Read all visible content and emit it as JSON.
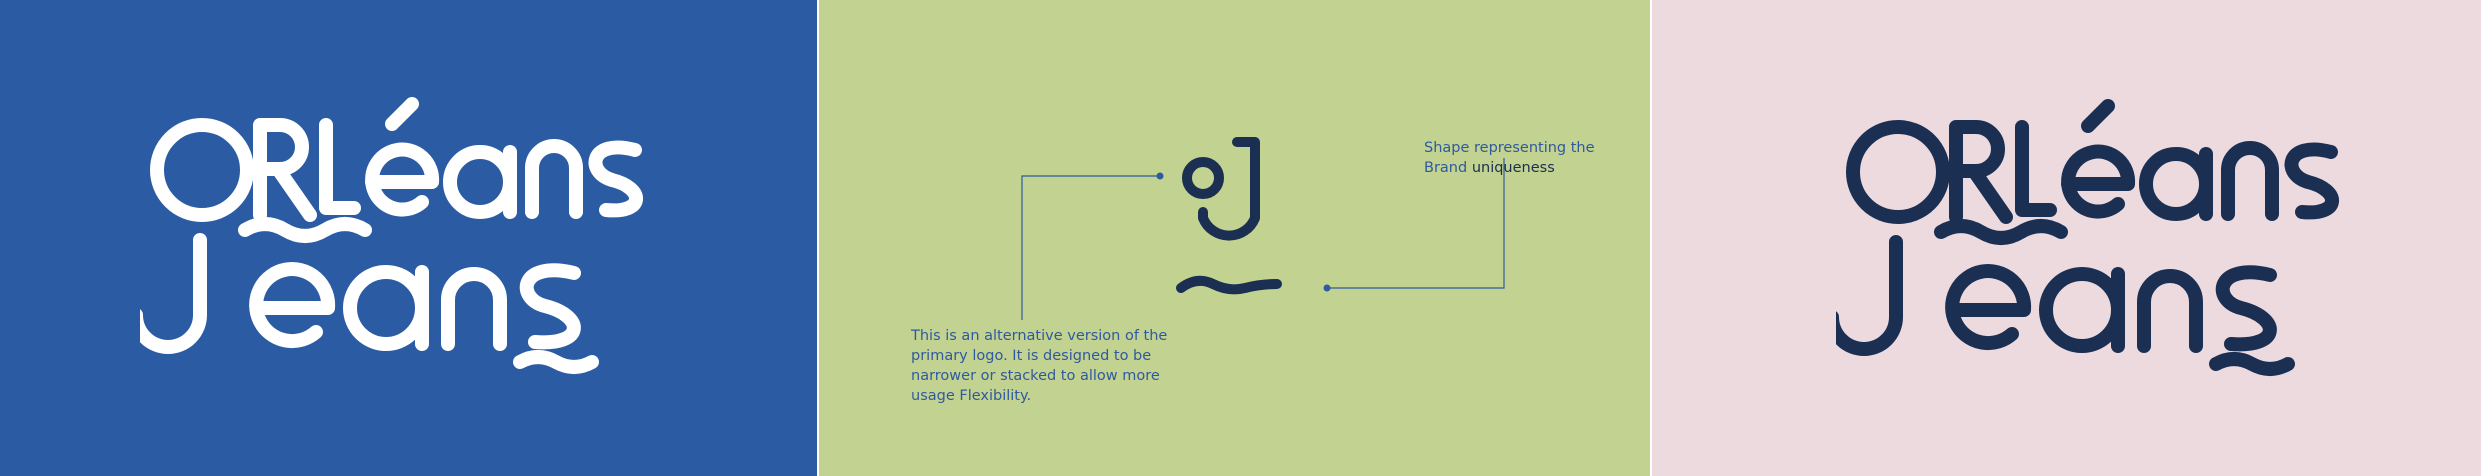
{
  "colors": {
    "panel_blue": "#2b5ca3",
    "panel_green": "#c2d291",
    "panel_pink": "#ecdadf",
    "logo_white": "#ffffff",
    "logo_navy": "#1b2f52",
    "annotation_blue": "#2f5a9e",
    "annotation_emphasis": "#1b2f52"
  },
  "logo": {
    "wordmark": "ORLéans Jeans"
  },
  "annotations": {
    "shape_note": {
      "line1": "Shape representing the",
      "line2_prefix": "Brand ",
      "line2_emphasis": "uniqueness"
    },
    "alternative_note": {
      "line1": "This is an alternative version of the",
      "line2": "primary logo. It is designed to be",
      "line3": "narrower or stacked to allow more",
      "line4": "usage Flexibility."
    }
  }
}
